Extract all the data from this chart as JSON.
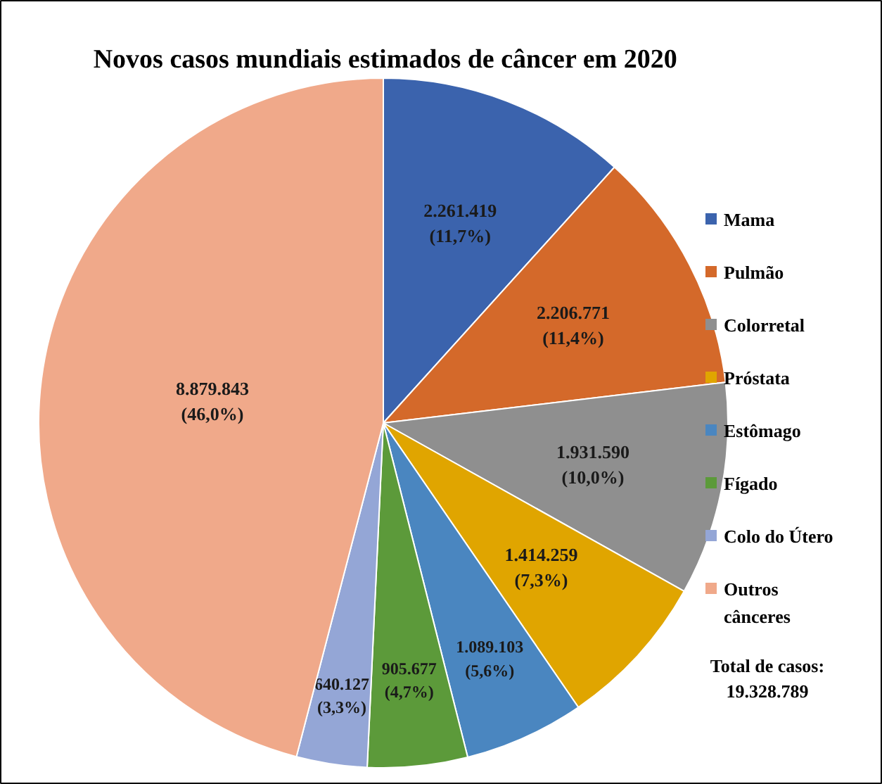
{
  "chart_data": {
    "type": "pie",
    "title": "Novos casos mundiais estimados de câncer em 2020",
    "categories": [
      "Mama",
      "Pulmão",
      "Colorretal",
      "Próstata",
      "Estômago",
      "Fígado",
      "Colo do Útero",
      "Outros cânceres"
    ],
    "values": [
      2261419,
      2206771,
      1931590,
      1414259,
      1089103,
      905677,
      640127,
      8879843
    ],
    "value_labels": [
      "2.261.419\n(11,7%)",
      "2.206.771\n(11,4%)",
      "1.931.590\n(10,0%)",
      "1.414.259\n(7,3%)",
      "1.089.103\n(5,6%)",
      "905.677\n(4,7%)",
      "640.127\n(3,3%)",
      "8.879.843\n(46,0%)"
    ],
    "colors": [
      "#3b63ad",
      "#d4692a",
      "#8f8f8f",
      "#e0a500",
      "#4a86c0",
      "#5c9a3a",
      "#94a6d6",
      "#f0a98a"
    ],
    "legend": "right",
    "annotations": [
      "Total de casos: 19.328.789"
    ]
  }
}
